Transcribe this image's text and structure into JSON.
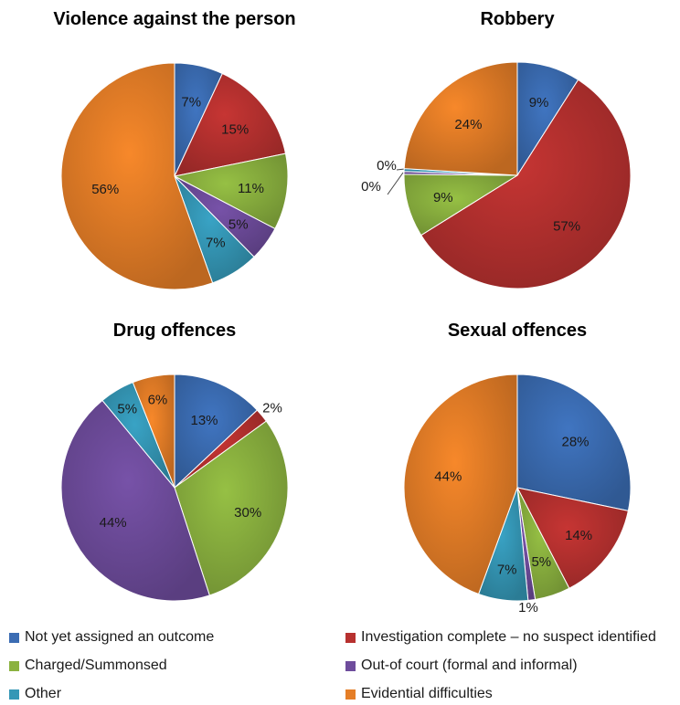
{
  "chart_data": [
    {
      "type": "pie",
      "title": "Violence against the person",
      "categories": [
        "Not yet assigned an outcome",
        "Investigation complete – no suspect identified",
        "Charged/Summonsed",
        "Out-of court (formal and informal)",
        "Other",
        "Evidential difficulties"
      ],
      "values": [
        7,
        15,
        11,
        5,
        7,
        56
      ],
      "labels": [
        "7%",
        "15%",
        "11%",
        "5%",
        "7%",
        "56%"
      ]
    },
    {
      "type": "pie",
      "title": "Robbery",
      "categories": [
        "Not yet assigned an outcome",
        "Investigation complete – no suspect identified",
        "Charged/Summonsed",
        "Out-of court (formal and informal)",
        "Other",
        "Evidential difficulties"
      ],
      "values": [
        9,
        57,
        9,
        0.4,
        0.4,
        24
      ],
      "labels": [
        "9%",
        "57%",
        "9%",
        "0%",
        "0%",
        "24%"
      ]
    },
    {
      "type": "pie",
      "title": "Drug offences",
      "categories": [
        "Not yet assigned an outcome",
        "Investigation complete – no suspect identified",
        "Charged/Summonsed",
        "Out-of court (formal and informal)",
        "Other",
        "Evidential difficulties"
      ],
      "values": [
        13,
        2,
        30,
        44,
        5,
        6
      ],
      "labels": [
        "13%",
        "2%",
        "30%",
        "44%",
        "5%",
        "6%"
      ]
    },
    {
      "type": "pie",
      "title": "Sexual offences",
      "categories": [
        "Not yet assigned an outcome",
        "Investigation complete – no suspect identified",
        "Charged/Summonsed",
        "Out-of court (formal and informal)",
        "Other",
        "Evidential difficulties"
      ],
      "values": [
        28,
        14,
        5,
        1,
        7,
        44
      ],
      "labels": [
        "28%",
        "14%",
        "5%",
        "1%",
        "7%",
        "44%"
      ]
    }
  ],
  "legend": {
    "placement": "bottom",
    "items": [
      {
        "label": "Not yet assigned an outcome",
        "color": "#3B6CB3"
      },
      {
        "label": "Investigation complete – no suspect identified",
        "color": "#B7312F"
      },
      {
        "label": "Charged/Summonsed",
        "color": "#8BB23F"
      },
      {
        "label": "Out-of court (formal and informal)",
        "color": "#6E4C9C"
      },
      {
        "label": "Other",
        "color": "#3597B6"
      },
      {
        "label": "Evidential difficulties",
        "color": "#E57E27"
      }
    ]
  }
}
